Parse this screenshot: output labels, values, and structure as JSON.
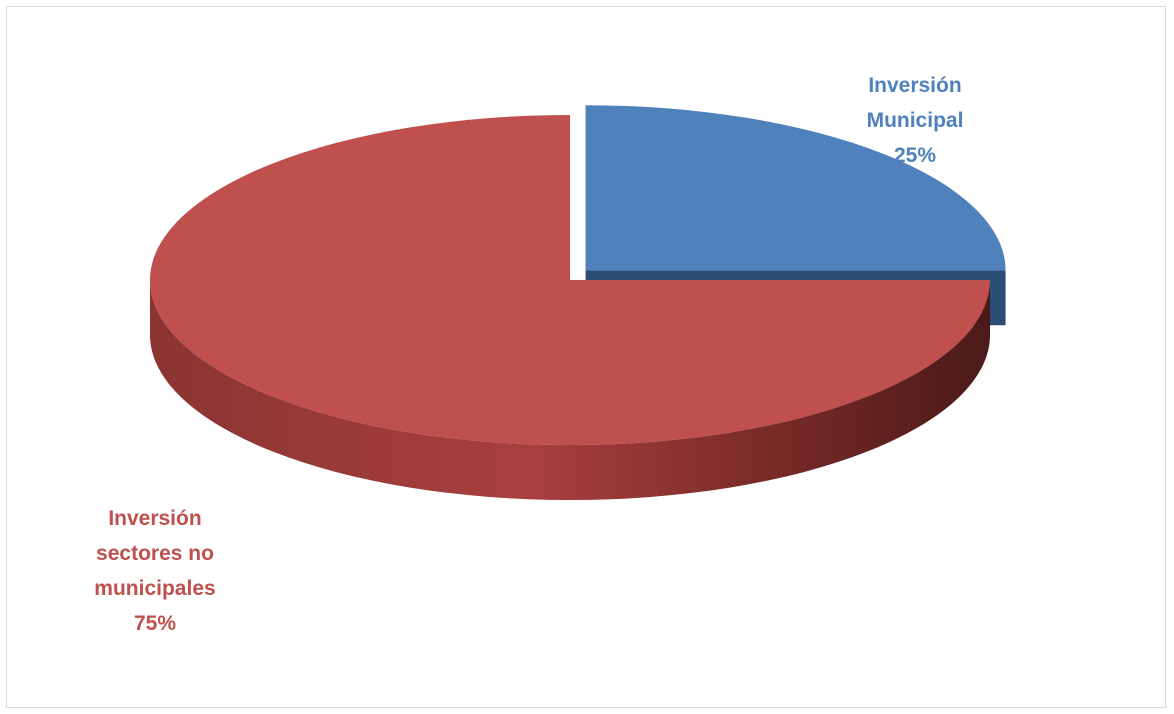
{
  "chart_data": {
    "type": "pie",
    "style": "3d-exploded",
    "slices": [
      {
        "name": "Inversión Municipal",
        "value": 25,
        "label_lines": [
          "Inversión",
          "Municipal",
          "25%"
        ],
        "color": "#4f81bd",
        "side_color": "#2c4d75",
        "exploded": true
      },
      {
        "name": "Inversión sectores no municipales",
        "value": 75,
        "label_lines": [
          "Inversión",
          "sectores no",
          "municipales",
          "75%"
        ],
        "color": "#c0504d",
        "side_color": "#7a2b29",
        "exploded": false
      }
    ],
    "legend": "none"
  }
}
